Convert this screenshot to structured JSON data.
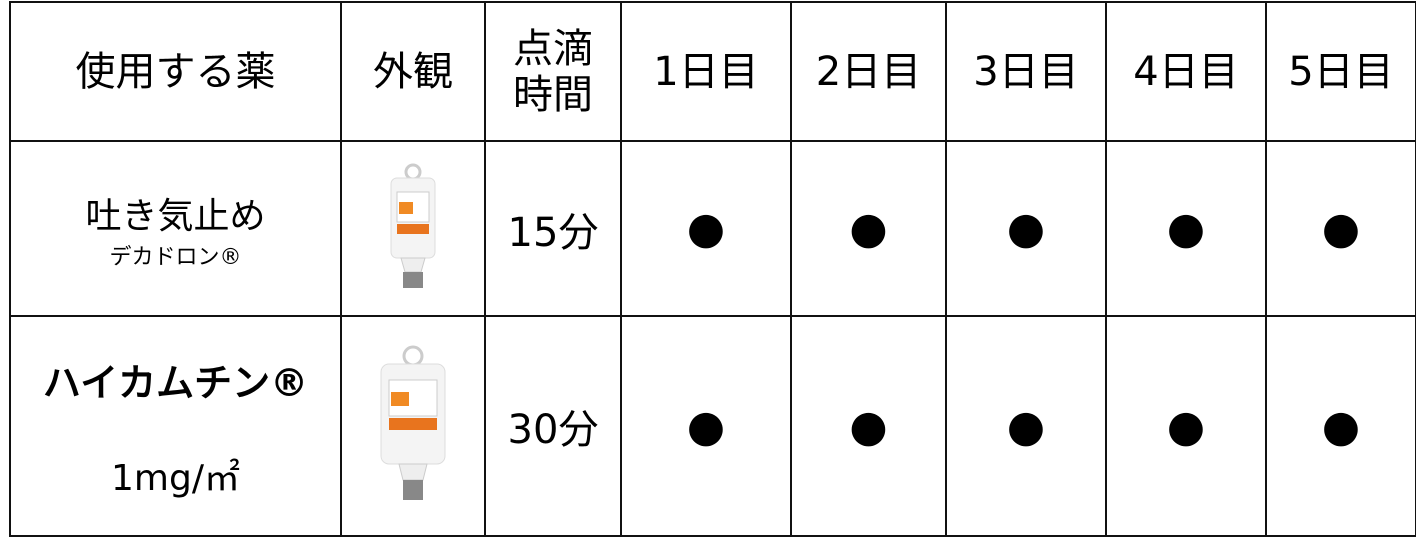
{
  "table": {
    "header": [
      "使用する薬",
      "外観",
      [
        "点滴",
        "時間"
      ],
      "1日目",
      "2日目",
      "3日目",
      "4日目",
      "5日目"
    ],
    "rows": [
      {
        "name": "吐き気止め",
        "sub": "デカドロン®",
        "time": "15分",
        "days": [
          "●",
          "●",
          "●",
          "●",
          "●"
        ]
      },
      {
        "name": "ハイカムチン®",
        "sub": "1mg/㎡",
        "time": "30分",
        "days": [
          "●",
          "●",
          "●",
          "●",
          "●"
        ]
      }
    ]
  }
}
